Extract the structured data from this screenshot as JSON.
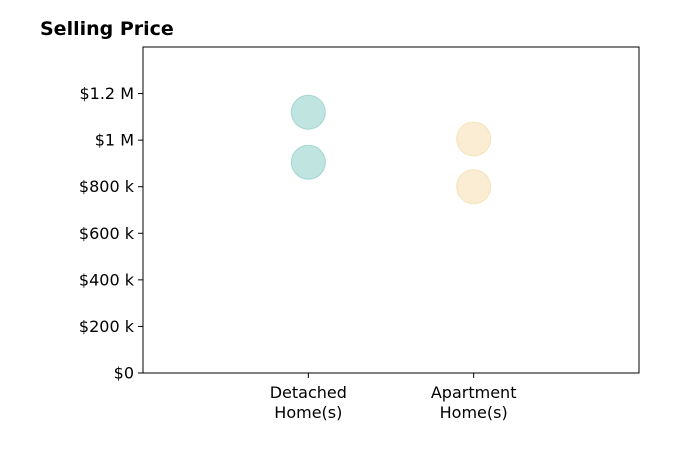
{
  "chart_data": {
    "type": "scatter",
    "title": "Selling Price",
    "xlabel": "",
    "ylabel": "",
    "categories": [
      [
        "Detached",
        "Home(s)"
      ],
      [
        "Apartment",
        "Home(s)"
      ]
    ],
    "y_ticks": [
      0,
      200000,
      400000,
      600000,
      800000,
      1000000,
      1200000
    ],
    "y_tick_labels": [
      "$0",
      "$200 k",
      "$400 k",
      "$600 k",
      "$800 k",
      "$1 M",
      "$1.2 M"
    ],
    "ylim": [
      0,
      1400000
    ],
    "xlim": [
      -1,
      2
    ],
    "grid": false,
    "legend": "none",
    "series": [
      {
        "category_index": 0,
        "color": "#8ccfc6",
        "stroke": "#7bc4ba",
        "values": [
          1120000,
          905000
        ]
      },
      {
        "category_index": 1,
        "color": "#f6dfb0",
        "stroke": "#f0d59c",
        "values": [
          1005000,
          800000
        ]
      }
    ]
  }
}
